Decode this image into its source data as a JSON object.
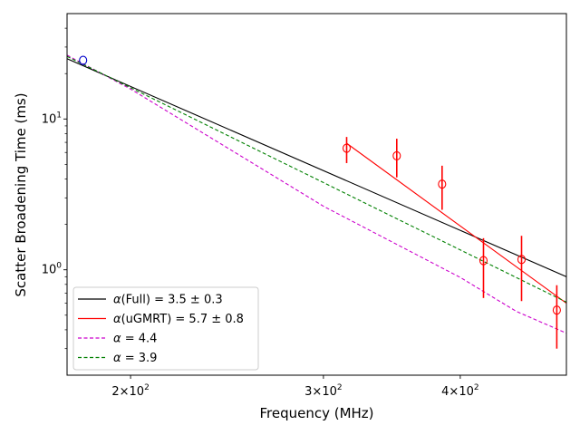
{
  "chart_data": {
    "type": "scatter",
    "xscale": "log",
    "yscale": "log",
    "xlabel": "Frequency (MHz)",
    "ylabel": "Scatter Broadening Time (ms)",
    "xlim": [
      175,
      500
    ],
    "ylim": [
      0.2,
      50
    ],
    "x_ticks": [
      {
        "value": 200,
        "base": "2",
        "exp": "2"
      },
      {
        "value": 300,
        "base": "3",
        "exp": "2"
      },
      {
        "value": 400,
        "base": "4",
        "exp": "2"
      }
    ],
    "y_ticks": [
      {
        "value": 1,
        "base": "10",
        "exp": "0"
      },
      {
        "value": 10,
        "base": "10",
        "exp": "1"
      }
    ],
    "points_blue": [
      {
        "x": 181,
        "y": 24.5
      }
    ],
    "points_red": [
      {
        "x": 315,
        "y": 6.4,
        "ylow": 5.1,
        "yhigh": 7.6
      },
      {
        "x": 350,
        "y": 5.7,
        "ylow": 4.1,
        "yhigh": 7.4
      },
      {
        "x": 385,
        "y": 3.7,
        "ylow": 2.5,
        "yhigh": 4.9
      },
      {
        "x": 420,
        "y": 1.15,
        "ylow": 0.65,
        "yhigh": 1.62
      },
      {
        "x": 455,
        "y": 1.17,
        "ylow": 0.62,
        "yhigh": 1.68
      },
      {
        "x": 490,
        "y": 0.54,
        "ylow": 0.3,
        "yhigh": 0.79
      }
    ],
    "lines": [
      {
        "name": "full",
        "label_prefix": "α",
        "label_rest": "(Full) = 3.5 ± 0.3",
        "color": "#000000",
        "dash": "",
        "points": [
          [
            175,
            25.1
          ],
          [
            500,
            0.9
          ]
        ]
      },
      {
        "name": "ugmrt",
        "label_prefix": "α",
        "label_rest": "(uGMRT) = 5.7 ± 0.8",
        "color": "#ff0000",
        "dash": "",
        "points": [
          [
            315,
            6.9
          ],
          [
            500,
            0.6
          ]
        ]
      },
      {
        "name": "alpha44",
        "label_prefix": "α",
        "label_rest": " = 4.4",
        "color": "#cc00cc",
        "dash": "4,2.5",
        "points": [
          [
            175,
            26.5
          ],
          [
            200,
            15.8
          ],
          [
            300,
            2.64
          ],
          [
            400,
            0.89
          ],
          [
            450,
            0.53
          ],
          [
            500,
            0.38
          ]
        ]
      },
      {
        "name": "alpha39",
        "label_prefix": "α",
        "label_rest": " = 3.9",
        "color": "#008000",
        "dash": "4,2.5",
        "points": [
          [
            175,
            26.0
          ],
          [
            500,
            0.61
          ]
        ]
      }
    ]
  }
}
